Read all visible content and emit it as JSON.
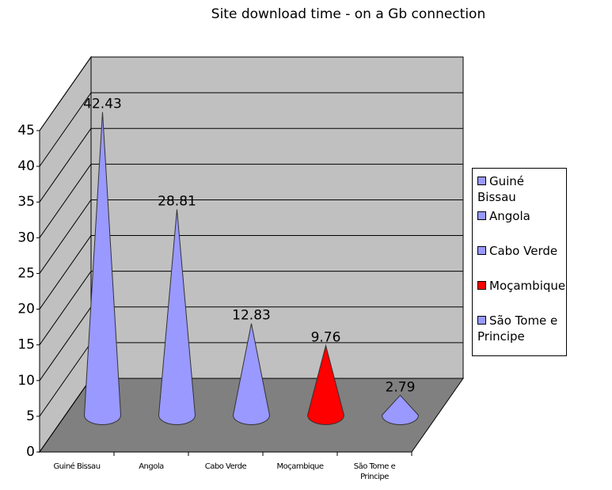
{
  "chart_data": {
    "type": "cone3d",
    "title": "Site download time - on a Gb connection",
    "categories": [
      "Guiné Bissau",
      "Angola",
      "Cabo Verde",
      "Moçambique",
      "São Tome e Principe"
    ],
    "values": [
      42.43,
      28.81,
      12.83,
      9.76,
      2.79
    ],
    "colors": [
      "#9999ff",
      "#9999ff",
      "#9999ff",
      "#ff0000",
      "#9999ff"
    ],
    "ylim": [
      0,
      45
    ],
    "yticks": [
      0,
      5,
      10,
      15,
      20,
      25,
      30,
      35,
      40,
      45
    ],
    "grid": true,
    "legend": "right"
  }
}
